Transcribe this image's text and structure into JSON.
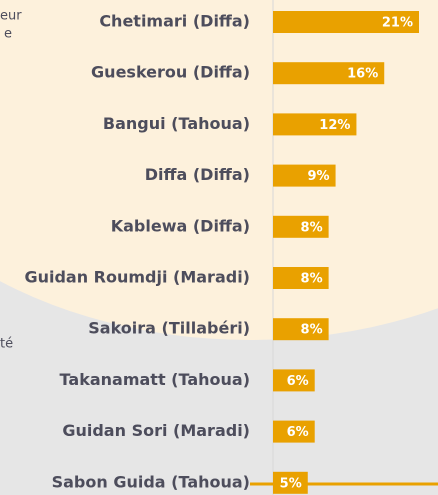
{
  "chart_data": {
    "type": "bar",
    "orientation": "horizontal",
    "categories": [
      "Chetimari (Diffa)",
      "Gueskerou (Diffa)",
      "Bangui (Tahoua)",
      "Diffa (Diffa)",
      "Kablewa (Diffa)",
      "Guidan Roumdji (Maradi)",
      "Sakoira (Tillabéri)",
      "Takanamatt (Tahoua)",
      "Guidan Sori (Maradi)",
      "Sabon Guida (Tahoua)"
    ],
    "values": [
      21,
      16,
      12,
      9,
      8,
      8,
      8,
      6,
      6,
      5
    ],
    "value_labels": [
      "21%",
      "16%",
      "12%",
      "9%",
      "8%",
      "8%",
      "8%",
      "6%",
      "6%",
      "5%"
    ],
    "color": "#e9a100",
    "xlim": [
      0,
      21
    ],
    "annotations": [
      "eur",
      "e",
      "té"
    ]
  }
}
